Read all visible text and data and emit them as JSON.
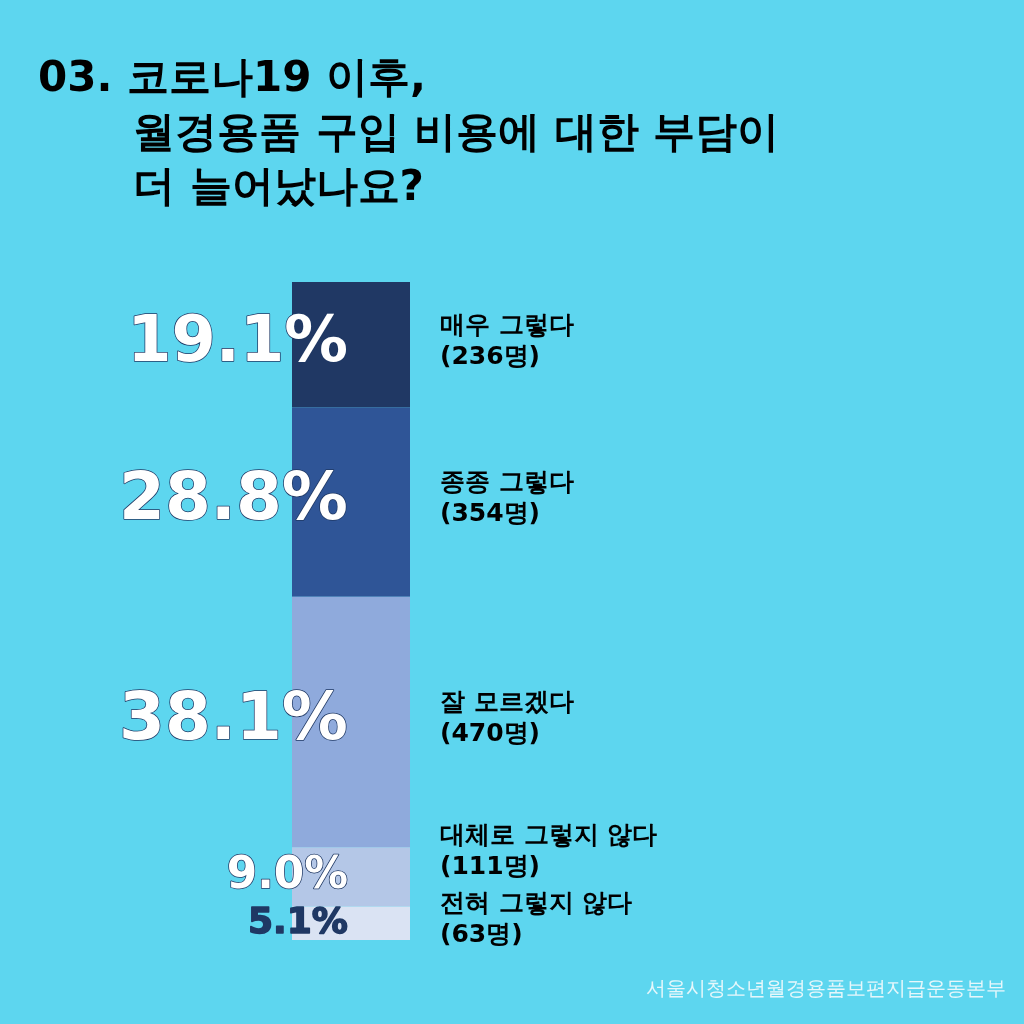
{
  "chart_data": {
    "type": "bar",
    "stacked": true,
    "title": "03. 코로나19 이후,\n월경용품 구입 비용에 대한 부담이\n더 늘어났나요?",
    "categories": [
      null
    ],
    "legend": false,
    "tick_labels": false,
    "annotations": [
      "서울시청소년월경용품보편지급운동본부"
    ],
    "series": [
      {
        "name": "전혀 그렇지 않다\n(63명)",
        "color": "#dae3f3",
        "values": [
          5.1
        ],
        "value_labels": [
          "5.1%"
        ]
      },
      {
        "name": "대체로 그렇지 않다\n(111명)",
        "color": "#b4c7e7",
        "values": [
          9.0
        ],
        "value_labels": [
          "9.0%"
        ]
      },
      {
        "name": "잘 모르겠다\n(470명)",
        "color": "#8faadc",
        "values": [
          38.1
        ],
        "value_labels": [
          "38.1%"
        ]
      },
      {
        "name": "종종 그렇다\n(354명)",
        "color": "#2f5597",
        "values": [
          28.8
        ],
        "value_labels": [
          "28.8%"
        ]
      },
      {
        "name": "매우 그렇다\n(236명)",
        "color": "#203864",
        "values": [
          19.1
        ],
        "value_labels": [
          "19.1%"
        ]
      }
    ]
  }
}
